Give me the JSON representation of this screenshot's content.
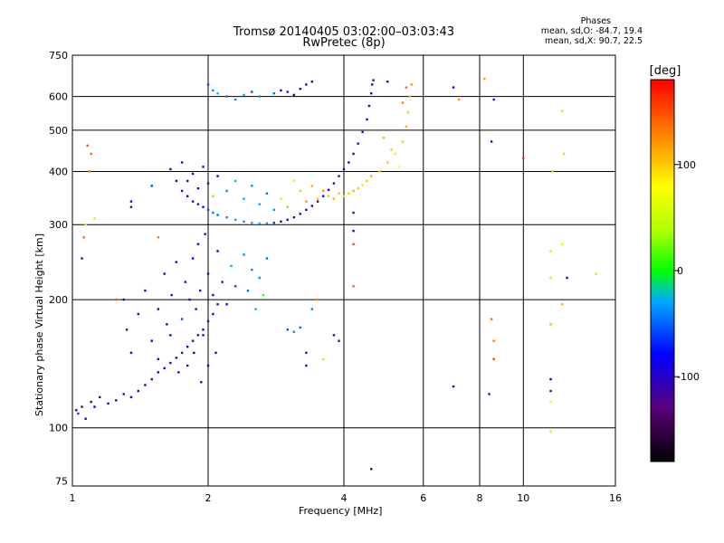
{
  "chart_data": {
    "type": "scatter",
    "title": "Tromsø 20140405 03:02:00–03:03:43",
    "subtitle": "RwPretec (8p)",
    "xlabel": "Frequency [MHz]",
    "ylabel": "Stationary phase Virtual Height [km]",
    "x_scale": "log2",
    "y_scale": "log",
    "xlim": [
      1,
      16
    ],
    "ylim": [
      73,
      750
    ],
    "x_ticks": [
      1,
      2,
      4,
      6,
      8,
      10,
      16
    ],
    "y_ticks": [
      75,
      100,
      200,
      300,
      400,
      500,
      600,
      750
    ],
    "grid": true,
    "phases_header": "Phases",
    "phases_line1": "mean, sd,O: -84.7, 19.4",
    "phases_line2": "mean, sd,X:  90.7, 22.5",
    "colorbar_label": "[deg]",
    "colorbar_ticks": [
      100,
      0,
      -100
    ],
    "colorbar_range": [
      -180,
      180
    ],
    "points": [
      [
        1.02,
        110,
        -100
      ],
      [
        1.03,
        108,
        -60
      ],
      [
        1.05,
        112,
        -110
      ],
      [
        1.07,
        105,
        -90
      ],
      [
        1.1,
        115,
        -120
      ],
      [
        1.12,
        112,
        -80
      ],
      [
        1.15,
        118,
        -100
      ],
      [
        1.2,
        114,
        -110
      ],
      [
        1.25,
        116,
        -100
      ],
      [
        1.3,
        120,
        -120
      ],
      [
        1.35,
        118,
        -100
      ],
      [
        1.4,
        122,
        -110
      ],
      [
        1.45,
        126,
        -100
      ],
      [
        1.5,
        130,
        -110
      ],
      [
        1.55,
        135,
        -100
      ],
      [
        1.6,
        138,
        -90
      ],
      [
        1.65,
        142,
        -110
      ],
      [
        1.7,
        146,
        -100
      ],
      [
        1.75,
        150,
        -120
      ],
      [
        1.8,
        155,
        -100
      ],
      [
        1.85,
        160,
        -110
      ],
      [
        1.9,
        165,
        -100
      ],
      [
        1.95,
        170,
        -90
      ],
      [
        2.0,
        178,
        -100
      ],
      [
        2.05,
        185,
        -110
      ],
      [
        2.1,
        195,
        -100
      ],
      [
        1.3,
        200,
        -100
      ],
      [
        1.32,
        170,
        -120
      ],
      [
        1.35,
        150,
        -90
      ],
      [
        1.4,
        185,
        -110
      ],
      [
        1.45,
        210,
        -100
      ],
      [
        1.5,
        160,
        -80
      ],
      [
        1.55,
        190,
        -110
      ],
      [
        1.6,
        230,
        -100
      ],
      [
        1.62,
        175,
        -90
      ],
      [
        1.66,
        205,
        -110
      ],
      [
        1.7,
        245,
        -100
      ],
      [
        1.75,
        180,
        -60
      ],
      [
        1.78,
        220,
        -100
      ],
      [
        1.82,
        200,
        -110
      ],
      [
        1.85,
        250,
        -90
      ],
      [
        1.88,
        190,
        -100
      ],
      [
        1.9,
        270,
        -110
      ],
      [
        1.92,
        210,
        -100
      ],
      [
        1.95,
        165,
        -80
      ],
      [
        1.97,
        285,
        -100
      ],
      [
        2.0,
        230,
        -110
      ],
      [
        2.05,
        205,
        -100
      ],
      [
        2.1,
        260,
        -90
      ],
      [
        2.15,
        220,
        -110
      ],
      [
        2.2,
        195,
        -100
      ],
      [
        2.25,
        240,
        -30
      ],
      [
        2.3,
        215,
        -60
      ],
      [
        2.4,
        255,
        -40
      ],
      [
        2.45,
        210,
        -50
      ],
      [
        2.5,
        235,
        -40
      ],
      [
        2.55,
        190,
        -30
      ],
      [
        2.6,
        225,
        -40
      ],
      [
        2.65,
        205,
        10
      ],
      [
        2.7,
        250,
        -50
      ],
      [
        1.55,
        145,
        -100
      ],
      [
        1.65,
        165,
        -90
      ],
      [
        1.72,
        135,
        -110
      ],
      [
        1.8,
        140,
        -100
      ],
      [
        1.86,
        150,
        -90
      ],
      [
        1.93,
        128,
        -110
      ],
      [
        2.0,
        140,
        -100
      ],
      [
        2.08,
        150,
        -110
      ],
      [
        1.05,
        250,
        -120
      ],
      [
        1.06,
        280,
        140
      ],
      [
        1.07,
        300,
        60
      ],
      [
        1.08,
        460,
        150
      ],
      [
        1.09,
        400,
        130
      ],
      [
        1.1,
        440,
        140
      ],
      [
        1.12,
        310,
        50
      ],
      [
        1.25,
        200,
        150
      ],
      [
        1.35,
        330,
        -110
      ],
      [
        1.35,
        340,
        -100
      ],
      [
        1.5,
        370,
        -60
      ],
      [
        1.55,
        280,
        130
      ],
      [
        1.65,
        405,
        -100
      ],
      [
        1.7,
        380,
        -110
      ],
      [
        1.75,
        360,
        -100
      ],
      [
        1.8,
        350,
        -90
      ],
      [
        1.85,
        340,
        -110
      ],
      [
        1.9,
        335,
        -100
      ],
      [
        1.95,
        330,
        -80
      ],
      [
        2.0,
        325,
        -60
      ],
      [
        2.05,
        320,
        -40
      ],
      [
        2.1,
        316,
        -50
      ],
      [
        2.2,
        312,
        -40
      ],
      [
        2.3,
        308,
        -30
      ],
      [
        2.4,
        305,
        -40
      ],
      [
        2.5,
        303,
        -20
      ],
      [
        2.6,
        302,
        -30
      ],
      [
        2.7,
        302,
        -40
      ],
      [
        2.8,
        303,
        -60
      ],
      [
        2.9,
        305,
        -80
      ],
      [
        3.0,
        308,
        -100
      ],
      [
        3.1,
        312,
        -100
      ],
      [
        3.2,
        318,
        -110
      ],
      [
        3.3,
        325,
        -100
      ],
      [
        3.4,
        332,
        -90
      ],
      [
        3.5,
        340,
        -110
      ],
      [
        3.6,
        350,
        -100
      ],
      [
        3.7,
        362,
        -110
      ],
      [
        3.8,
        375,
        -100
      ],
      [
        3.9,
        390,
        -110
      ],
      [
        4.0,
        405,
        -100
      ],
      [
        4.1,
        420,
        -110
      ],
      [
        4.2,
        440,
        -100
      ],
      [
        4.3,
        465,
        -100
      ],
      [
        4.4,
        495,
        -110
      ],
      [
        4.5,
        530,
        -100
      ],
      [
        4.55,
        570,
        -110
      ],
      [
        4.6,
        610,
        -100
      ],
      [
        4.62,
        640,
        -110
      ],
      [
        4.65,
        655,
        -100
      ],
      [
        1.75,
        420,
        -100
      ],
      [
        1.8,
        380,
        -110
      ],
      [
        1.85,
        395,
        -100
      ],
      [
        1.9,
        365,
        -90
      ],
      [
        1.95,
        410,
        -100
      ],
      [
        2.0,
        375,
        -110
      ],
      [
        2.05,
        350,
        110
      ],
      [
        2.1,
        390,
        -100
      ],
      [
        2.2,
        360,
        -40
      ],
      [
        2.3,
        380,
        -20
      ],
      [
        2.4,
        345,
        -30
      ],
      [
        2.5,
        370,
        -40
      ],
      [
        2.6,
        335,
        -30
      ],
      [
        2.7,
        355,
        -50
      ],
      [
        2.8,
        325,
        -40
      ],
      [
        2.9,
        345,
        40
      ],
      [
        3.0,
        330,
        20
      ],
      [
        3.1,
        380,
        90
      ],
      [
        3.2,
        360,
        100
      ],
      [
        3.3,
        340,
        120
      ],
      [
        3.4,
        370,
        110
      ],
      [
        3.5,
        345,
        100
      ],
      [
        3.6,
        360,
        120
      ],
      [
        3.7,
        350,
        100
      ],
      [
        3.8,
        345,
        110
      ],
      [
        3.9,
        355,
        100
      ],
      [
        4.0,
        350,
        90
      ],
      [
        4.1,
        355,
        100
      ],
      [
        4.2,
        360,
        110
      ],
      [
        4.3,
        365,
        100
      ],
      [
        4.4,
        372,
        90
      ],
      [
        4.5,
        380,
        100
      ],
      [
        4.6,
        390,
        110
      ],
      [
        4.8,
        400,
        100
      ],
      [
        5.0,
        420,
        100
      ],
      [
        5.2,
        440,
        90
      ],
      [
        5.4,
        470,
        100
      ],
      [
        5.5,
        510,
        110
      ],
      [
        5.55,
        550,
        100
      ],
      [
        5.6,
        600,
        110
      ],
      [
        5.65,
        640,
        120
      ],
      [
        5.3,
        410,
        80
      ],
      [
        5.1,
        450,
        100
      ],
      [
        4.9,
        480,
        110
      ],
      [
        5.4,
        580,
        130
      ],
      [
        5.5,
        630,
        140
      ],
      [
        2.0,
        640,
        -60
      ],
      [
        2.05,
        620,
        -40
      ],
      [
        2.1,
        610,
        -30
      ],
      [
        2.2,
        600,
        -50
      ],
      [
        2.3,
        590,
        -40
      ],
      [
        2.4,
        605,
        -30
      ],
      [
        2.5,
        615,
        -60
      ],
      [
        2.6,
        600,
        -40
      ],
      [
        2.8,
        610,
        -50
      ],
      [
        2.9,
        620,
        -80
      ],
      [
        3.0,
        615,
        -100
      ],
      [
        3.1,
        605,
        -110
      ],
      [
        3.2,
        625,
        -100
      ],
      [
        3.3,
        640,
        -90
      ],
      [
        3.4,
        650,
        -110
      ],
      [
        3.0,
        170,
        -60
      ],
      [
        3.1,
        168,
        -40
      ],
      [
        3.2,
        172,
        -50
      ],
      [
        3.3,
        150,
        -110
      ],
      [
        3.4,
        190,
        -40
      ],
      [
        3.5,
        200,
        130
      ],
      [
        3.3,
        140,
        -110
      ],
      [
        3.6,
        145,
        40
      ],
      [
        3.8,
        165,
        -110
      ],
      [
        3.9,
        160,
        -120
      ],
      [
        4.2,
        320,
        -110
      ],
      [
        4.2,
        290,
        -100
      ],
      [
        4.2,
        270,
        150
      ],
      [
        4.2,
        215,
        140
      ],
      [
        4.6,
        80,
        -110
      ],
      [
        5.0,
        650,
        -90
      ],
      [
        7.0,
        125,
        -110
      ],
      [
        7.0,
        630,
        -100
      ],
      [
        7.2,
        590,
        120
      ],
      [
        8.5,
        180,
        140
      ],
      [
        8.6,
        160,
        130
      ],
      [
        8.6,
        145,
        150
      ],
      [
        8.4,
        120,
        -120
      ],
      [
        8.5,
        470,
        -110
      ],
      [
        8.6,
        590,
        -110
      ],
      [
        8.2,
        660,
        120
      ],
      [
        10,
        430,
        160
      ],
      [
        11.5,
        260,
        40
      ],
      [
        11.5,
        225,
        40
      ],
      [
        11.5,
        175,
        20
      ],
      [
        11.5,
        130,
        -90
      ],
      [
        11.5,
        122,
        -130
      ],
      [
        11.5,
        115,
        70
      ],
      [
        11.5,
        98,
        40
      ],
      [
        11.6,
        400,
        30
      ],
      [
        12.2,
        555,
        100
      ],
      [
        12.3,
        440,
        30
      ],
      [
        12.2,
        270,
        60
      ],
      [
        12.2,
        195,
        110
      ],
      [
        12.5,
        225,
        -110
      ],
      [
        14.5,
        230,
        40
      ]
    ]
  }
}
